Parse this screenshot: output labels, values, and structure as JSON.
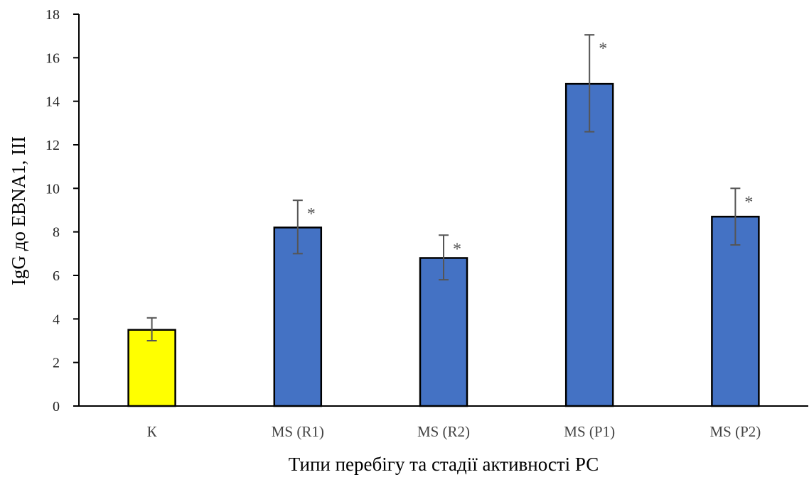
{
  "chart_data": {
    "type": "bar",
    "categories": [
      "К",
      "MS (R1)",
      "MS (R2)",
      "MS (P1)",
      "MS (P2)"
    ],
    "values": [
      3.5,
      8.2,
      6.8,
      14.8,
      8.7
    ],
    "error_low": [
      3.0,
      7.0,
      5.8,
      12.6,
      7.4
    ],
    "error_high": [
      4.05,
      9.45,
      7.85,
      17.05,
      10.0
    ],
    "significance_markers": [
      "",
      "*",
      "*",
      "*",
      "*"
    ],
    "bar_colors": [
      "#ffff00",
      "#4472c4",
      "#4472c4",
      "#4472c4",
      "#4472c4"
    ],
    "xlabel": "Типи перебігу та стадії активності РС",
    "ylabel": "IgG до EBNA1, ІІІ",
    "ylim": [
      0,
      18
    ],
    "yticks": [
      "0",
      "2",
      "4",
      "6",
      "8",
      "10",
      "12",
      "14",
      "16",
      "18"
    ],
    "grid": false,
    "legend": "none"
  }
}
